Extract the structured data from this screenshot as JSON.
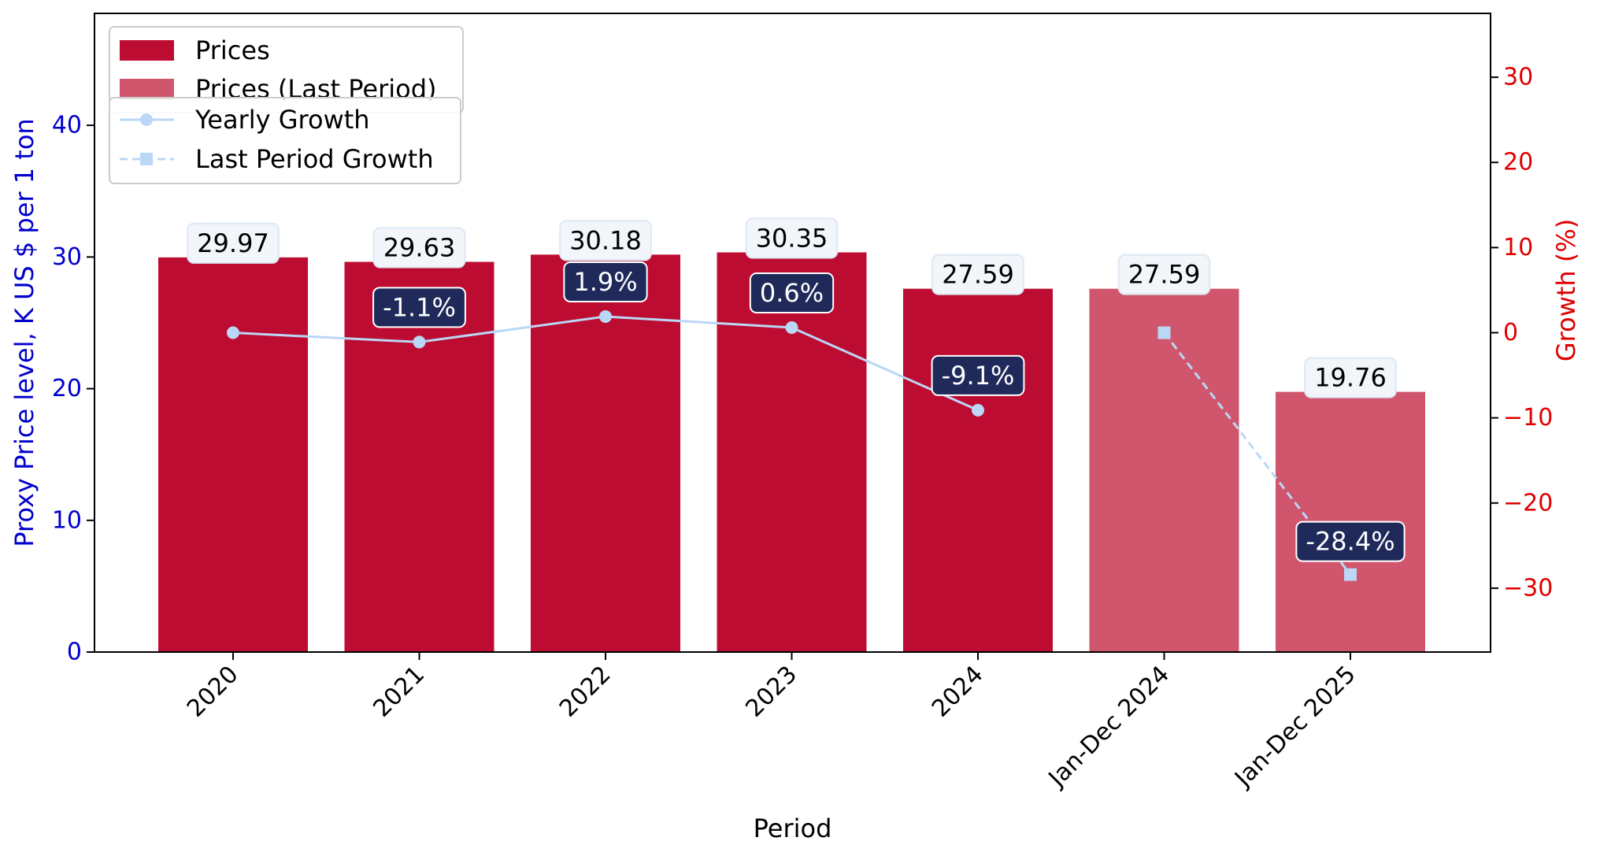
{
  "chart_data": {
    "type": "bar",
    "xlabel": "Period",
    "ylabel_left": "Proxy Price level, K US $ per 1 ton",
    "ylabel_right": "Growth (%)",
    "ylim_left": [
      0,
      48.5
    ],
    "ylim_right": [
      -37.5,
      37.5
    ],
    "left_ticks": [
      "0",
      "10",
      "20",
      "30",
      "40"
    ],
    "right_ticks": [
      "−30",
      "−20",
      "−10",
      "0",
      "10",
      "20",
      "30"
    ],
    "categories": [
      "2020",
      "2021",
      "2022",
      "2023",
      "2024",
      "Jan-Dec 2024",
      "Jan-Dec 2025"
    ],
    "bars": [
      {
        "category": "2020",
        "value": 29.97,
        "label": "29.97",
        "series": "Prices"
      },
      {
        "category": "2021",
        "value": 29.63,
        "label": "29.63",
        "series": "Prices"
      },
      {
        "category": "2022",
        "value": 30.18,
        "label": "30.18",
        "series": "Prices"
      },
      {
        "category": "2023",
        "value": 30.35,
        "label": "30.35",
        "series": "Prices"
      },
      {
        "category": "2024",
        "value": 27.59,
        "label": "27.59",
        "series": "Prices"
      },
      {
        "category": "Jan-Dec 2024",
        "value": 27.59,
        "label": "27.59",
        "series": "Prices (Last Period)"
      },
      {
        "category": "Jan-Dec 2025",
        "value": 19.76,
        "label": "19.76",
        "series": "Prices (Last Period)"
      }
    ],
    "yearly_growth": {
      "name": "Yearly Growth",
      "points": [
        {
          "index": 0,
          "value": 0,
          "label": ""
        },
        {
          "index": 1,
          "value": -1.1,
          "label": "-1.1%"
        },
        {
          "index": 2,
          "value": 1.9,
          "label": "1.9%"
        },
        {
          "index": 3,
          "value": 0.6,
          "label": "0.6%"
        },
        {
          "index": 4,
          "value": -9.1,
          "label": "-9.1%"
        }
      ]
    },
    "last_period_growth": {
      "name": "Last Period Growth",
      "points": [
        {
          "index": 5,
          "value": 0,
          "label": ""
        },
        {
          "index": 6,
          "value": -28.4,
          "label": "-28.4%"
        }
      ]
    },
    "legend": {
      "placement": "top-left",
      "box1": [
        "Prices",
        "Prices (Last Period)"
      ],
      "box2": [
        "Yearly Growth",
        "Last Period Growth"
      ]
    },
    "colors": {
      "bar": "#BC0C31",
      "bar_last": "#D0566D",
      "line": "#BAD7F5",
      "left_axis": "#0000CC",
      "right_axis": "#E00000",
      "growth_box": "#1F2A5A",
      "value_box": "#F2F6FA"
    },
    "grid": false
  }
}
